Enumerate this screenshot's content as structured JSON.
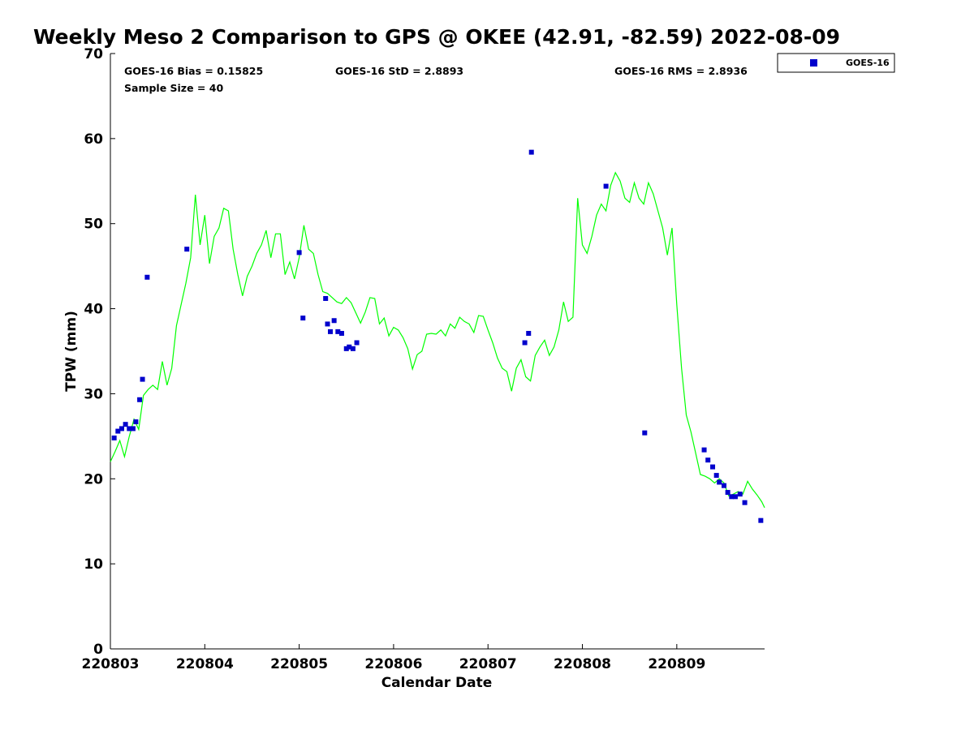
{
  "colors": {
    "gps_line": "#00ff00",
    "goes_marker": "#0000cc",
    "axis": "#000000",
    "text": "#000000",
    "background": "#ffffff"
  },
  "chart_data": {
    "type": "scatter",
    "title": "Weekly Meso 2 Comparison to GPS @ OKEE (42.91, -82.59) 2022-08-09",
    "xlabel": "Calendar Date",
    "ylabel": "TPW (mm)",
    "xlim": [
      220803,
      220809.93
    ],
    "ylim": [
      0,
      70
    ],
    "x_ticks": [
      220803,
      220804,
      220805,
      220806,
      220807,
      220808,
      220809
    ],
    "y_ticks": [
      0,
      10,
      20,
      30,
      40,
      50,
      60,
      70
    ],
    "grid": false,
    "legend_position": "top-right",
    "stats": {
      "bias": "GOES-16 Bias = 0.15825",
      "std": "GOES-16 StD = 2.8893",
      "rms": "GOES-16 RMS = 2.8936",
      "sample_size": "Sample Size = 40"
    },
    "series": [
      {
        "name": "GOES-16",
        "type": "scatter",
        "marker": "square",
        "x": [
          220803.04,
          220803.08,
          220803.12,
          220803.16,
          220803.2,
          220803.24,
          220803.27,
          220803.31,
          220803.34,
          220803.39,
          220803.81,
          220805.0,
          220805.04,
          220805.28,
          220805.3,
          220805.33,
          220805.37,
          220805.41,
          220805.45,
          220805.5,
          220805.53,
          220805.57,
          220805.61,
          220807.39,
          220807.43,
          220807.46,
          220808.25,
          220808.66,
          220809.29,
          220809.33,
          220809.38,
          220809.42,
          220809.45,
          220809.5,
          220809.54,
          220809.58,
          220809.62,
          220809.67,
          220809.72,
          220809.89
        ],
        "y": [
          24.8,
          25.6,
          25.9,
          26.4,
          25.9,
          25.9,
          26.7,
          29.3,
          31.7,
          43.7,
          47.0,
          46.6,
          38.9,
          41.2,
          38.2,
          37.3,
          38.6,
          37.3,
          37.1,
          35.3,
          35.5,
          35.3,
          36.0,
          36.0,
          37.1,
          58.4,
          54.4,
          25.4,
          23.4,
          22.2,
          21.4,
          20.4,
          19.6,
          19.2,
          18.4,
          17.9,
          17.9,
          18.2,
          17.2,
          15.1
        ]
      },
      {
        "name": "",
        "type": "line",
        "x": [
          220803.0,
          220803.05,
          220803.1,
          220803.15,
          220803.2,
          220803.25,
          220803.3,
          220803.35,
          220803.4,
          220803.45,
          220803.5,
          220803.55,
          220803.6,
          220803.65,
          220803.7,
          220803.75,
          220803.8,
          220803.85,
          220803.9,
          220803.95,
          220804.0,
          220804.05,
          220804.1,
          220804.15,
          220804.2,
          220804.25,
          220804.3,
          220804.35,
          220804.4,
          220804.45,
          220804.5,
          220804.55,
          220804.6,
          220804.65,
          220804.7,
          220804.75,
          220804.8,
          220804.85,
          220804.9,
          220804.95,
          220805.0,
          220805.05,
          220805.1,
          220805.15,
          220805.2,
          220805.25,
          220805.3,
          220805.35,
          220805.4,
          220805.45,
          220805.5,
          220805.55,
          220805.6,
          220805.65,
          220805.7,
          220805.75,
          220805.8,
          220805.85,
          220805.9,
          220805.95,
          220806.0,
          220806.05,
          220806.1,
          220806.15,
          220806.2,
          220806.25,
          220806.3,
          220806.35,
          220806.4,
          220806.45,
          220806.5,
          220806.55,
          220806.6,
          220806.65,
          220806.7,
          220806.75,
          220806.8,
          220806.85,
          220806.9,
          220806.95,
          220807.0,
          220807.05,
          220807.1,
          220807.15,
          220807.2,
          220807.25,
          220807.3,
          220807.35,
          220807.4,
          220807.45,
          220807.5,
          220807.55,
          220807.6,
          220807.65,
          220807.7,
          220807.75,
          220807.8,
          220807.85,
          220807.9,
          220807.95,
          220808.0,
          220808.05,
          220808.1,
          220808.15,
          220808.2,
          220808.25,
          220808.3,
          220808.35,
          220808.4,
          220808.45,
          220808.5,
          220808.55,
          220808.6,
          220808.65,
          220808.7,
          220808.75,
          220808.8,
          220808.85,
          220808.9,
          220808.95,
          220809.0,
          220809.05,
          220809.1,
          220809.15,
          220809.2,
          220809.25,
          220809.3,
          220809.35,
          220809.4,
          220809.45,
          220809.5,
          220809.55,
          220809.6,
          220809.65,
          220809.7,
          220809.75,
          220809.8,
          220809.85,
          220809.9,
          220809.93
        ],
        "y": [
          22.0,
          23.2,
          24.5,
          22.6,
          25.0,
          27.0,
          25.8,
          29.8,
          30.5,
          31.0,
          30.5,
          33.8,
          31.0,
          33.0,
          38.0,
          40.5,
          43.0,
          46.0,
          53.4,
          47.5,
          51.0,
          45.3,
          48.5,
          49.5,
          51.8,
          51.5,
          47.0,
          44.0,
          41.5,
          43.8,
          45.0,
          46.5,
          47.5,
          49.2,
          46.0,
          48.8,
          48.8,
          44.0,
          45.5,
          43.5,
          46.0,
          49.8,
          47.0,
          46.5,
          44.0,
          42.0,
          41.8,
          41.3,
          40.8,
          40.6,
          41.3,
          40.7,
          39.5,
          38.3,
          39.6,
          41.3,
          41.2,
          38.2,
          38.9,
          36.8,
          37.8,
          37.5,
          36.6,
          35.3,
          32.9,
          34.6,
          35.0,
          37.0,
          37.1,
          37.0,
          37.5,
          36.8,
          38.2,
          37.7,
          39.0,
          38.5,
          38.2,
          37.2,
          39.2,
          39.1,
          37.5,
          36.0,
          34.2,
          33.0,
          32.6,
          30.3,
          33.0,
          34.0,
          32.0,
          31.5,
          34.5,
          35.5,
          36.3,
          34.5,
          35.5,
          37.5,
          40.8,
          38.5,
          39.0,
          53.0,
          47.5,
          46.5,
          48.5,
          51.0,
          52.3,
          51.5,
          54.5,
          56.0,
          55.0,
          53.0,
          52.5,
          54.8,
          53.0,
          52.3,
          54.8,
          53.5,
          51.5,
          49.5,
          46.3,
          49.5,
          40.5,
          33.0,
          27.5,
          25.5,
          23.0,
          20.5,
          20.3,
          20.0,
          19.5,
          20.0,
          19.5,
          18.0,
          18.2,
          18.5,
          18.2,
          19.7,
          18.8,
          18.1,
          17.3,
          16.6
        ]
      }
    ]
  }
}
